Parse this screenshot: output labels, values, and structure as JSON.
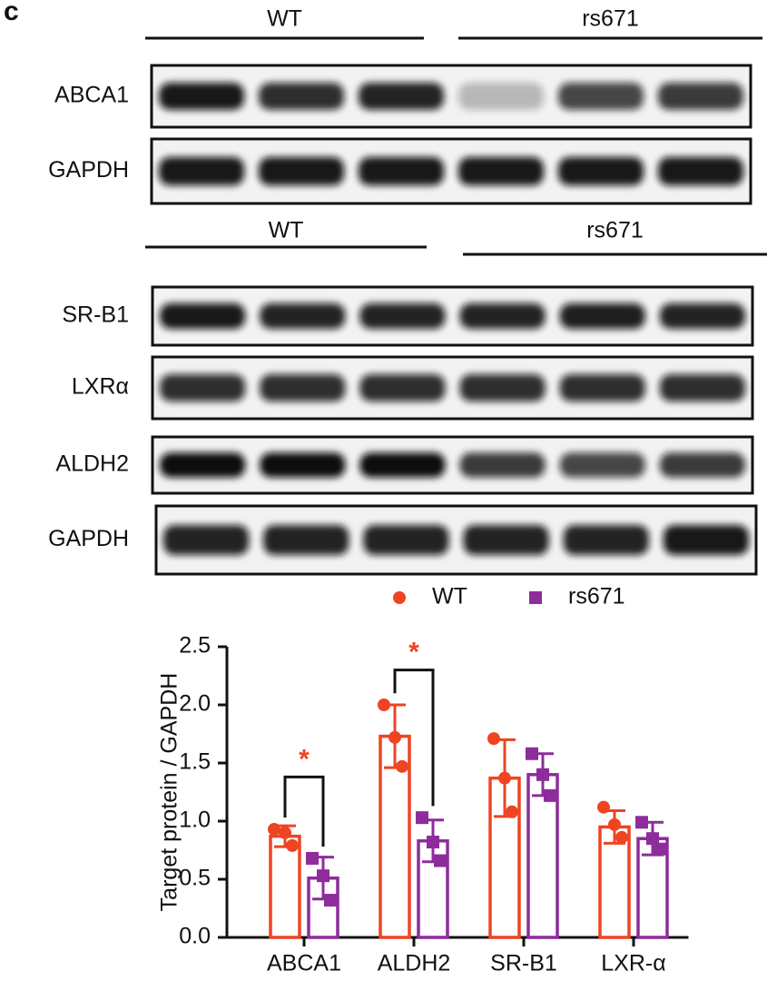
{
  "panel_label": "c",
  "blot_groups": [
    {
      "groups": [
        "WT",
        "rs671"
      ],
      "rows": [
        "ABCA1",
        "GAPDH"
      ]
    },
    {
      "groups": [
        "WT",
        "rs671"
      ],
      "rows": [
        "SR-B1",
        "LXRα",
        "ALDH2",
        "GAPDH"
      ]
    }
  ],
  "chart_data": {
    "type": "bar",
    "ylabel": "Target protein / GAPDH",
    "categories": [
      "ABCA1",
      "ALDH2",
      "SR-B1",
      "LXR-α"
    ],
    "series": [
      {
        "name": "WT",
        "color": "#ee4422",
        "marker": "circle",
        "values": [
          0.87,
          1.73,
          1.37,
          0.95
        ],
        "errors": [
          0.09,
          0.27,
          0.33,
          0.14
        ],
        "points": [
          [
            0.93,
            0.9,
            0.79
          ],
          [
            2.0,
            1.72,
            1.47
          ],
          [
            1.71,
            1.37,
            1.08
          ],
          [
            1.12,
            0.97,
            0.86
          ]
        ]
      },
      {
        "name": "rs671",
        "color": "#8e2c9c",
        "marker": "square",
        "values": [
          0.51,
          0.83,
          1.4,
          0.85
        ],
        "errors": [
          0.18,
          0.18,
          0.18,
          0.14
        ],
        "points": [
          [
            0.68,
            0.53,
            0.32
          ],
          [
            1.03,
            0.82,
            0.66
          ],
          [
            1.58,
            1.4,
            1.22
          ],
          [
            0.99,
            0.85,
            0.76
          ]
        ]
      }
    ],
    "annotations": [
      {
        "label": "*",
        "category": "ABCA1",
        "y": 1.38
      },
      {
        "label": "*",
        "category": "ALDH2",
        "y": 2.3
      }
    ],
    "ylim": [
      0,
      2.5
    ],
    "yticks": [
      {
        "value": 0,
        "label": "0.0"
      },
      0.5,
      {
        "value": 1,
        "label": "1.0"
      },
      1.5,
      {
        "value": 2,
        "label": "2.0"
      },
      2.5
    ]
  }
}
